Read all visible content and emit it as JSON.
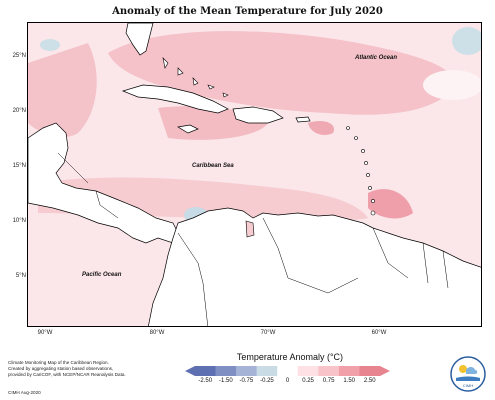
{
  "title": "Anomaly of the Mean Temperature for July 2020",
  "oceans": {
    "atlantic": "Atlantic Ocean",
    "caribbean": "Caribbean Sea",
    "pacific": "Pacific Ocean"
  },
  "lat_labels": [
    "25°N",
    "20°N",
    "15°N",
    "10°N",
    "5°N"
  ],
  "lon_labels": [
    "90°W",
    "80°W",
    "70°W",
    "60°W"
  ],
  "legend": {
    "title": "Temperature Anomaly (°C)",
    "ticks": [
      "-2.50",
      "-1.50",
      "-0.75",
      "-0.25",
      "0",
      "0.25",
      "0.75",
      "1.50",
      "2.50"
    ],
    "colors": [
      "#5e6fb2",
      "#7f8fc4",
      "#a5b3d6",
      "#c9dce6",
      "#ffffff",
      "#fde1e4",
      "#f8c3c9",
      "#f1a0aa",
      "#e8848f"
    ]
  },
  "credit": {
    "line1": "Climate Monitoring Map of the Caribbean Region.",
    "line2": "Created by aggregating station based observations,",
    "line3": "provided by CariCOF, with NCEP/NCAR Reanalysis Data.",
    "date": "CIMH Aug-2020"
  },
  "logo": {
    "label": "CIMH"
  }
}
